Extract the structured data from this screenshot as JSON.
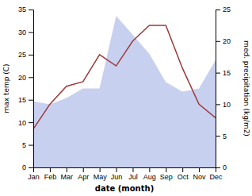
{
  "chart_data": {
    "type": "line",
    "categories": [
      "Jan",
      "Feb",
      "Mar",
      "Apr",
      "May",
      "Jun",
      "Jul",
      "Aug",
      "Sep",
      "Oct",
      "Nov",
      "Dec"
    ],
    "series": [
      {
        "type": "area",
        "axis": "y2",
        "color": "#c8d0f0",
        "values": [
          10.5,
          10.0,
          11.0,
          12.5,
          12.5,
          24.0,
          21.0,
          18.0,
          13.5,
          12.0,
          12.5,
          17.0
        ]
      },
      {
        "type": "line",
        "color": "#9b3a3a",
        "values": [
          8.5,
          14.0,
          18.0,
          19.0,
          25.0,
          22.5,
          28.0,
          31.5,
          31.5,
          22.0,
          14.0,
          11.0
        ]
      }
    ],
    "xlabel": "date (month)",
    "ylabel": "max temp (C)",
    "y2label": "med. precipitation (kg/m2)",
    "ylim": [
      0,
      35
    ],
    "yticks": [
      0,
      5,
      10,
      15,
      20,
      25,
      30,
      35
    ],
    "y2lim": [
      0,
      25
    ],
    "y2ticks": [
      0,
      5,
      10,
      15,
      20,
      25
    ]
  }
}
